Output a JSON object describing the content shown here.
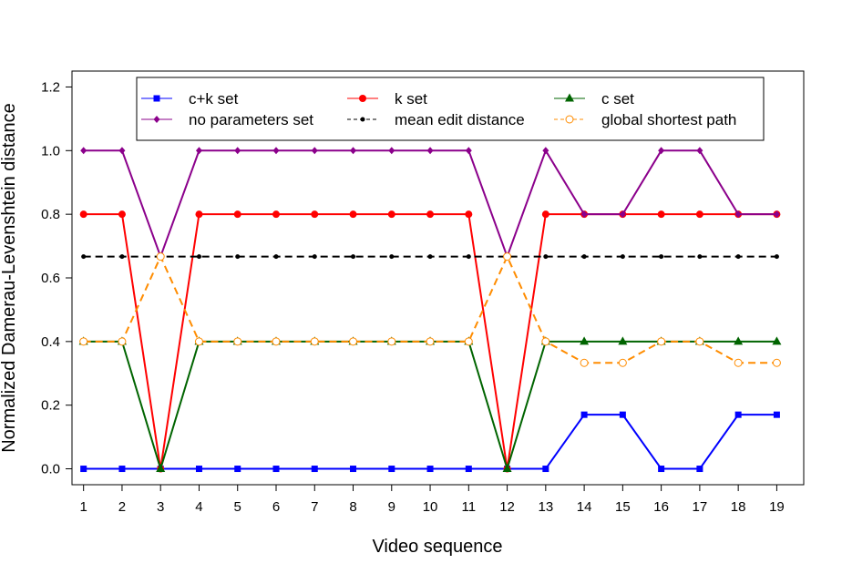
{
  "chart_data": {
    "type": "line",
    "title": "",
    "xlabel": "Video sequence",
    "ylabel": "Normalized Damerau-Levenshtein distance",
    "x": [
      1,
      2,
      3,
      4,
      5,
      6,
      7,
      8,
      9,
      10,
      11,
      12,
      13,
      14,
      15,
      16,
      17,
      18,
      19
    ],
    "xlim": [
      0.7,
      19.7
    ],
    "ylim": [
      -0.05,
      1.25
    ],
    "yticks": [
      "0.0",
      "0.2",
      "0.4",
      "0.6",
      "0.8",
      "1.0",
      "1.2"
    ],
    "grid": false,
    "legend_position": "top",
    "series": [
      {
        "name": "c+k set",
        "color": "#0000ff",
        "marker": "square",
        "dash": "solid",
        "values": [
          0,
          0,
          0,
          0,
          0,
          0,
          0,
          0,
          0,
          0,
          0,
          0,
          0,
          0.17,
          0.17,
          0,
          0,
          0.17,
          0.17
        ]
      },
      {
        "name": "k set",
        "color": "#ff0000",
        "marker": "circle",
        "dash": "solid",
        "values": [
          0.8,
          0.8,
          0,
          0.8,
          0.8,
          0.8,
          0.8,
          0.8,
          0.8,
          0.8,
          0.8,
          0,
          0.8,
          0.8,
          0.8,
          0.8,
          0.8,
          0.8,
          0.8
        ]
      },
      {
        "name": "c set",
        "color": "#006400",
        "marker": "triangle",
        "dash": "solid",
        "values": [
          0.4,
          0.4,
          0,
          0.4,
          0.4,
          0.4,
          0.4,
          0.4,
          0.4,
          0.4,
          0.4,
          0,
          0.4,
          0.4,
          0.4,
          0.4,
          0.4,
          0.4,
          0.4
        ]
      },
      {
        "name": "no parameters set",
        "color": "#8b008b",
        "marker": "diamond",
        "dash": "solid",
        "values": [
          1,
          1,
          0.667,
          1,
          1,
          1,
          1,
          1,
          1,
          1,
          1,
          0.667,
          1,
          0.8,
          0.8,
          1,
          1,
          0.8,
          0.8
        ]
      },
      {
        "name": "mean edit distance",
        "color": "#000000",
        "marker": "smallcircle",
        "dash": "dashed",
        "values": [
          0.667,
          0.667,
          0.667,
          0.667,
          0.667,
          0.667,
          0.667,
          0.667,
          0.667,
          0.667,
          0.667,
          0.667,
          0.667,
          0.667,
          0.667,
          0.667,
          0.667,
          0.667,
          0.667
        ]
      },
      {
        "name": "global shortest path",
        "color": "#ff8c00",
        "marker": "opencircle",
        "dash": "dashed",
        "values": [
          0.4,
          0.4,
          0.667,
          0.4,
          0.4,
          0.4,
          0.4,
          0.4,
          0.4,
          0.4,
          0.4,
          0.667,
          0.4,
          0.333,
          0.333,
          0.4,
          0.4,
          0.333,
          0.333
        ]
      }
    ]
  }
}
